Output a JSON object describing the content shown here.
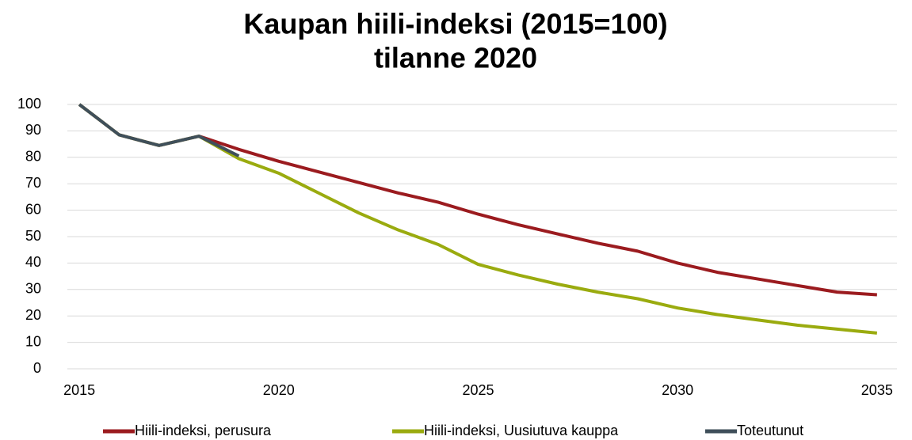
{
  "chart_data": {
    "type": "line",
    "title": "Kaupan hiili-indeksi (2015=100)",
    "subtitle": "tilanne 2020",
    "x": [
      2015,
      2016,
      2017,
      2018,
      2019,
      2020,
      2021,
      2022,
      2023,
      2024,
      2025,
      2026,
      2027,
      2028,
      2029,
      2030,
      2031,
      2032,
      2033,
      2034,
      2035
    ],
    "series": [
      {
        "name": "Hiili-indeksi, perusura",
        "color": "#9b1b1f",
        "values": [
          100,
          88.5,
          84.5,
          88,
          83,
          78.5,
          74.5,
          70.5,
          66.5,
          63,
          58.5,
          54.5,
          51,
          47.5,
          44.5,
          40,
          36.5,
          34,
          31.5,
          29,
          28
        ]
      },
      {
        "name": "Hiili-indeksi, Uusiutuva kauppa",
        "color": "#9aab0f",
        "values": [
          100,
          88.5,
          84.5,
          88,
          79.5,
          74,
          66.5,
          59,
          52.5,
          47,
          39.5,
          35.5,
          32,
          29,
          26.5,
          23,
          20.5,
          18.5,
          16.5,
          15,
          13.5
        ]
      },
      {
        "name": "Toteutunut",
        "color": "#3f4f5a",
        "values": [
          100,
          88.5,
          84.5,
          88,
          80.5,
          null,
          null,
          null,
          null,
          null,
          null,
          null,
          null,
          null,
          null,
          null,
          null,
          null,
          null,
          null,
          null
        ]
      }
    ],
    "xlim": [
      2014.7,
      2035.5
    ],
    "xticks": [
      2015,
      2020,
      2025,
      2030,
      2035
    ],
    "ylim": [
      0,
      100
    ],
    "yticks": [
      0,
      10,
      20,
      30,
      40,
      50,
      60,
      70,
      80,
      90,
      100
    ],
    "grid": true,
    "legend": "bottom"
  }
}
